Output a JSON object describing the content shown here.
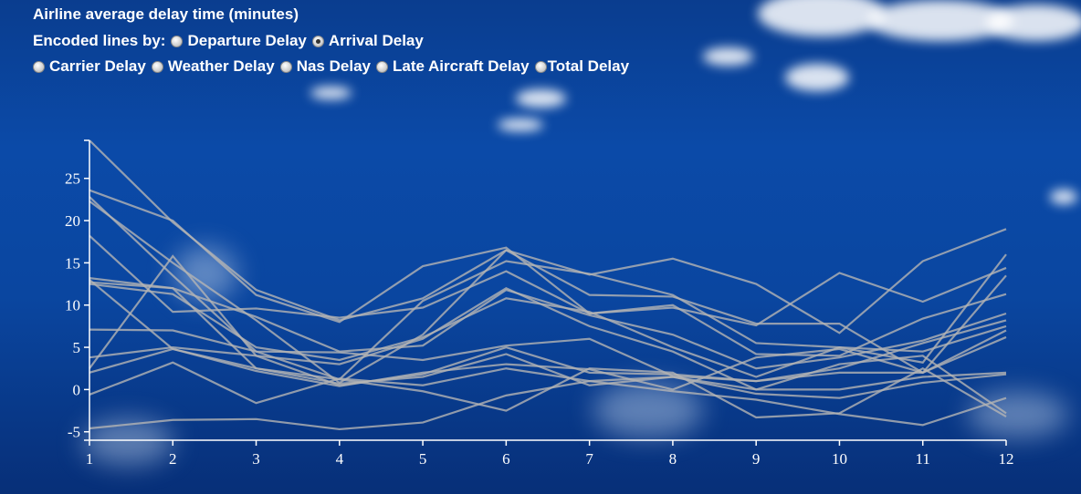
{
  "controls": {
    "title": "Airline average delay time (minutes)",
    "encoded_label": "Encoded lines by:",
    "options": [
      {
        "label": "Departure Delay",
        "checked": false
      },
      {
        "label": "Arrival Delay",
        "checked": true
      },
      {
        "label": "Carrier Delay",
        "checked": false
      },
      {
        "label": "Weather Delay",
        "checked": false
      },
      {
        "label": "Nas Delay",
        "checked": false
      },
      {
        "label": "Late Aircraft Delay",
        "checked": false
      },
      {
        "label": "Total Delay",
        "checked": false
      }
    ]
  },
  "chart_data": {
    "type": "line",
    "title": "Airline average delay time (minutes)",
    "xlabel": "",
    "ylabel": "",
    "x": [
      1,
      2,
      3,
      4,
      5,
      6,
      7,
      8,
      9,
      10,
      11,
      12
    ],
    "xlim": [
      1,
      12
    ],
    "ylim": [
      -6,
      29.5
    ],
    "yticks": [
      -5,
      0,
      5,
      10,
      15,
      20,
      25
    ],
    "grid": false,
    "line_color": "#b4b4b4",
    "series": [
      {
        "values": [
          29.5,
          19.8,
          11.8,
          8.2,
          10.8,
          16.5,
          13.6,
          15.5,
          12.5,
          6.7,
          15.2,
          19.0
        ]
      },
      {
        "values": [
          23.6,
          20.0,
          11.2,
          8.0,
          14.6,
          16.8,
          9.0,
          9.7,
          7.6,
          13.8,
          10.4,
          14.4
        ]
      },
      {
        "values": [
          22.8,
          13.5,
          4.5,
          1.2,
          10.5,
          15.2,
          13.7,
          11.2,
          5.5,
          5.0,
          3.2,
          16.0
        ]
      },
      {
        "values": [
          22.3,
          15.0,
          8.2,
          0.8,
          6.5,
          16.5,
          11.2,
          11.0,
          7.8,
          7.8,
          2.0,
          13.5
        ]
      },
      {
        "values": [
          18.2,
          9.2,
          9.6,
          8.5,
          9.7,
          14.0,
          9.0,
          10.0,
          4.2,
          4.0,
          8.4,
          11.3
        ]
      },
      {
        "values": [
          13.2,
          12.0,
          8.6,
          4.5,
          5.2,
          11.8,
          8.8,
          6.5,
          2.5,
          3.8,
          5.8,
          9.0
        ]
      },
      {
        "values": [
          12.5,
          11.3,
          5.0,
          3.5,
          6.2,
          10.8,
          9.2,
          5.0,
          1.5,
          5.0,
          4.5,
          7.5
        ]
      },
      {
        "values": [
          2.5,
          15.8,
          4.0,
          3.0,
          6.0,
          12.0,
          7.5,
          4.5,
          0.0,
          3.0,
          4.0,
          -2.8
        ]
      },
      {
        "values": [
          7.1,
          7.0,
          4.5,
          4.4,
          3.5,
          5.2,
          6.0,
          1.6,
          1.0,
          2.5,
          5.5,
          8.2
        ]
      },
      {
        "values": [
          3.8,
          5.0,
          4.0,
          0.5,
          1.8,
          5.0,
          2.0,
          1.8,
          1.0,
          2.0,
          2.0,
          7.0
        ]
      },
      {
        "values": [
          13.0,
          4.8,
          2.2,
          0.4,
          2.0,
          3.0,
          2.4,
          0.0,
          3.8,
          4.8,
          2.0,
          6.2
        ]
      },
      {
        "values": [
          2.0,
          4.8,
          2.5,
          0.7,
          1.5,
          4.2,
          0.5,
          1.5,
          0.0,
          0.0,
          1.5,
          2.0
        ]
      },
      {
        "values": [
          -0.6,
          3.2,
          -1.6,
          1.3,
          0.5,
          2.5,
          1.0,
          1.5,
          -0.5,
          -1.0,
          0.8,
          1.8
        ]
      },
      {
        "values": [
          -4.6,
          -3.6,
          -3.5,
          -4.7,
          -3.9,
          -0.7,
          1.0,
          -0.2,
          -1.2,
          -2.9,
          -4.2,
          -1.0
        ]
      },
      {
        "values": [
          12.7,
          12.0,
          2.5,
          1.2,
          -0.2,
          -2.5,
          2.5,
          2.0,
          -3.3,
          -2.8,
          2.5,
          -3.2
        ]
      }
    ]
  }
}
